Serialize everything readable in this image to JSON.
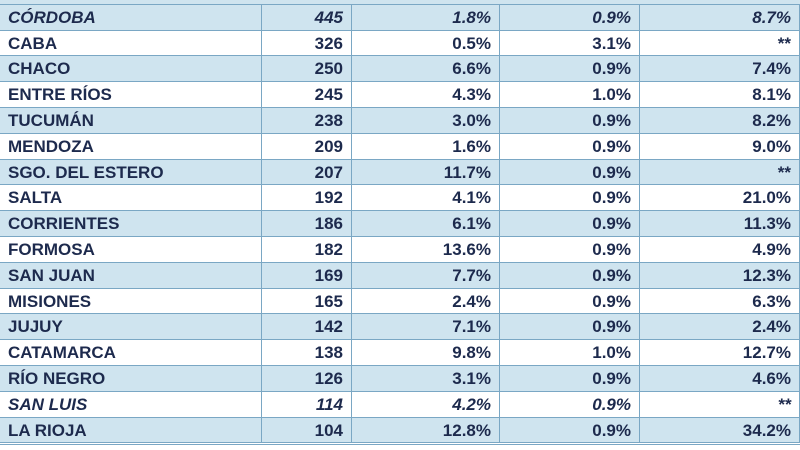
{
  "table": {
    "rows": [
      [
        "CÓRDOBA",
        "445",
        "1.8%",
        "0.9%",
        "8.7%"
      ],
      [
        "CABA",
        "326",
        "0.5%",
        "3.1%",
        "**"
      ],
      [
        "CHACO",
        "250",
        "6.6%",
        "0.9%",
        "7.4%"
      ],
      [
        "ENTRE RÍOS",
        "245",
        "4.3%",
        "1.0%",
        "8.1%"
      ],
      [
        "TUCUMÁN",
        "238",
        "3.0%",
        "0.9%",
        "8.2%"
      ],
      [
        "MENDOZA",
        "209",
        "1.6%",
        "0.9%",
        "9.0%"
      ],
      [
        "SGO. DEL ESTERO",
        "207",
        "11.7%",
        "0.9%",
        "**"
      ],
      [
        "SALTA",
        "192",
        "4.1%",
        "0.9%",
        "21.0%"
      ],
      [
        "CORRIENTES",
        "186",
        "6.1%",
        "0.9%",
        "11.3%"
      ],
      [
        "FORMOSA",
        "182",
        "13.6%",
        "0.9%",
        "4.9%"
      ],
      [
        "SAN JUAN",
        "169",
        "7.7%",
        "0.9%",
        "12.3%"
      ],
      [
        "MISIONES",
        "165",
        "2.4%",
        "0.9%",
        "6.3%"
      ],
      [
        "JUJUY",
        "142",
        "7.1%",
        "0.9%",
        "2.4%"
      ],
      [
        "CATAMARCA",
        "138",
        "9.8%",
        "1.0%",
        "12.7%"
      ],
      [
        "RÍO NEGRO",
        "126",
        "3.1%",
        "0.9%",
        "4.6%"
      ],
      [
        "SAN LUIS",
        "114",
        "4.2%",
        "0.9%",
        "**"
      ],
      [
        "LA RIOJA",
        "104",
        "12.8%",
        "0.9%",
        "34.2%"
      ]
    ],
    "emphasized_rows": [
      0,
      15
    ],
    "stripe_color": "#cfe4ef"
  }
}
